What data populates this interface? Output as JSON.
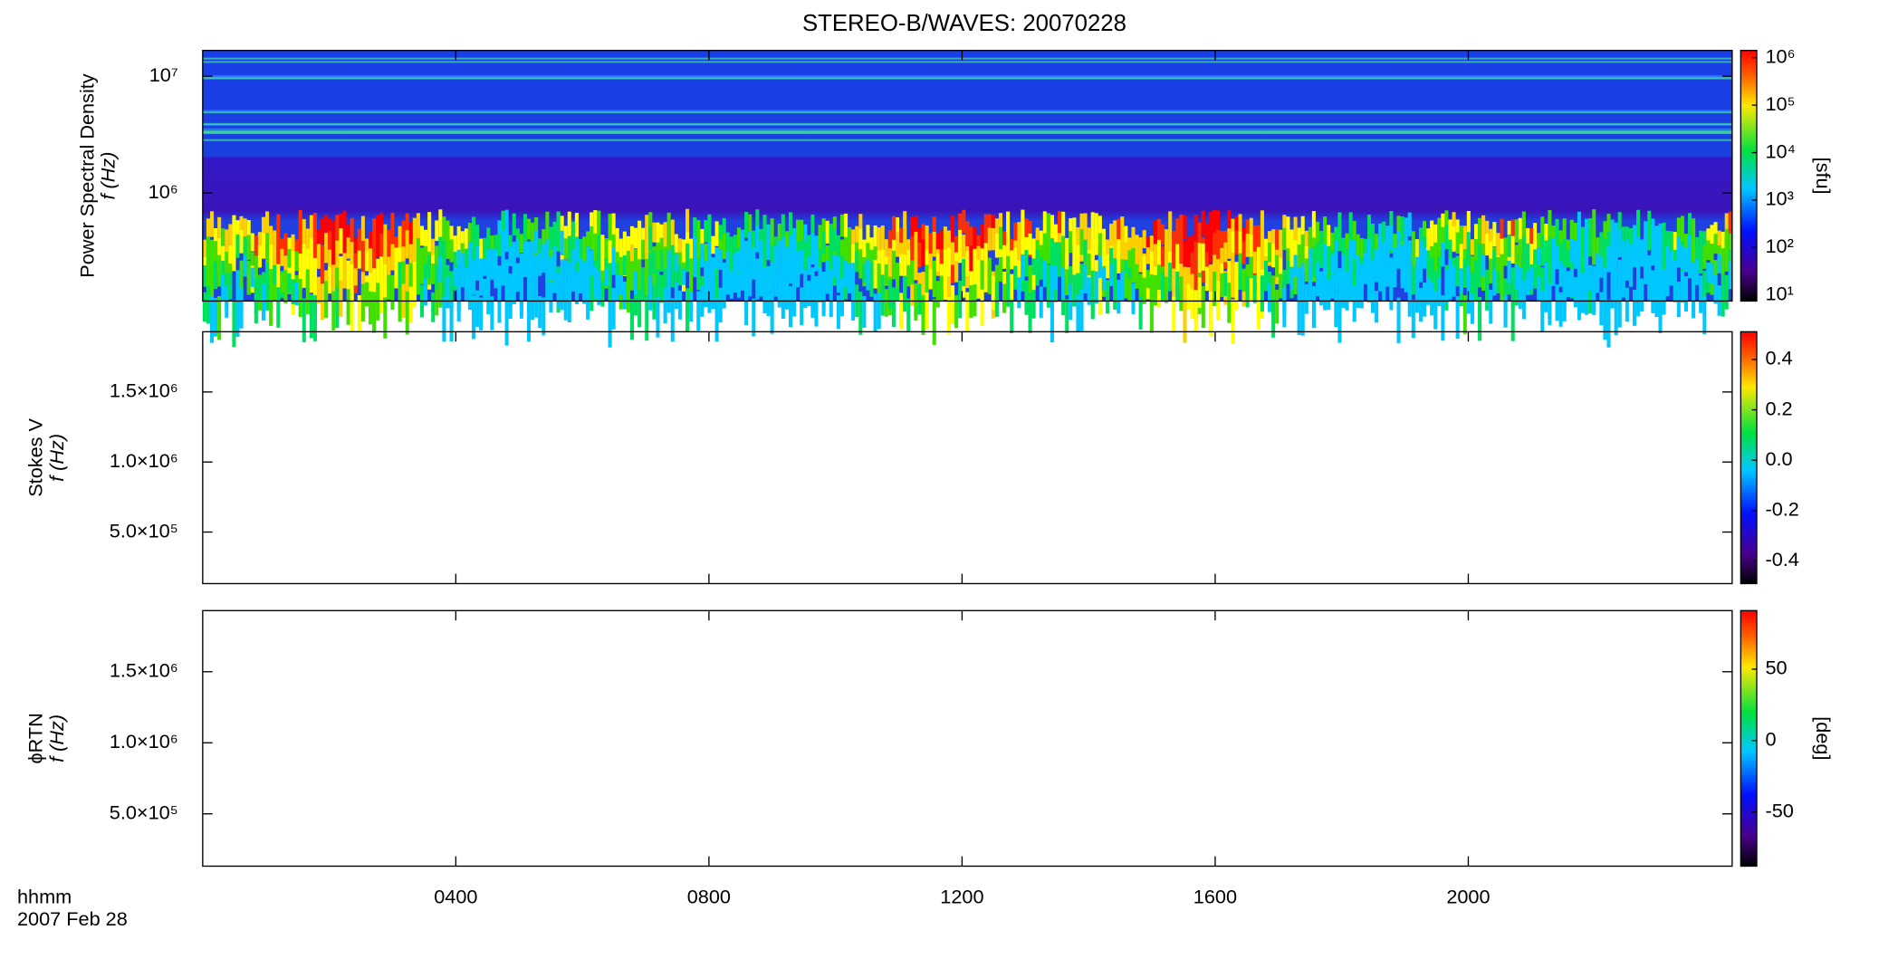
{
  "title": "STEREO-B/WAVES: 20070228",
  "chart_data": [
    {
      "type": "heatmap",
      "ylabel": [
        "Power Spectral Density",
        "f (Hz)"
      ],
      "ylog": true,
      "ylim": [
        119000,
        16600000
      ],
      "yticks": [
        {
          "value": 1000000,
          "label": "10⁶"
        },
        {
          "value": 10000000,
          "label": "10⁷"
        }
      ],
      "colorbar": {
        "log": true,
        "lim": [
          7.5,
          1420000
        ],
        "label": "[sfu]",
        "ticks": [
          {
            "value": 10,
            "label": "10¹"
          },
          {
            "value": 100,
            "label": "10²"
          },
          {
            "value": 1000,
            "label": "10³"
          },
          {
            "value": 10000,
            "label": "10⁴"
          },
          {
            "value": 100000,
            "label": "10⁵"
          },
          {
            "value": 1000000,
            "label": "10⁶"
          }
        ]
      }
    },
    {
      "type": "heatmap",
      "ylabel": [
        "Stokes V",
        "f (Hz)"
      ],
      "ylog": false,
      "ylim": [
        132000,
        1930000
      ],
      "yticks": [
        {
          "value": 500000,
          "label": "5.0×10⁵"
        },
        {
          "value": 1000000,
          "label": "1.0×10⁶"
        },
        {
          "value": 1500000,
          "label": "1.5×10⁶"
        }
      ],
      "colorbar": {
        "log": false,
        "lim": [
          -0.49,
          0.51
        ],
        "ticks": [
          -0.4,
          -0.2,
          {
            "value": 0,
            "label": "0.0"
          },
          0.2,
          0.4
        ]
      }
    },
    {
      "type": "heatmap",
      "ylabel": [
        "ϕRTN",
        "f (Hz)"
      ],
      "ylog": false,
      "ylim": [
        132000,
        1930000
      ],
      "yticks": [
        {
          "value": 500000,
          "label": "5.0×10⁵"
        },
        {
          "value": 1000000,
          "label": "1.0×10⁶"
        },
        {
          "value": 1500000,
          "label": "1.5×10⁶"
        }
      ],
      "colorbar": {
        "log": false,
        "lim": [
          -88,
          91
        ],
        "label": "[deg]",
        "ticks": [
          -50,
          0,
          50
        ]
      },
      "xlabel": "hhmm",
      "date": "2007 Feb 28",
      "xlim": [
        0,
        24.17
      ],
      "xticks": [
        {
          "value": 4,
          "label": "0400"
        },
        {
          "value": 8,
          "label": "0800"
        },
        {
          "value": 12,
          "label": "1200"
        },
        {
          "value": 16,
          "label": "1600"
        },
        {
          "value": 20,
          "label": "2000"
        }
      ]
    }
  ]
}
